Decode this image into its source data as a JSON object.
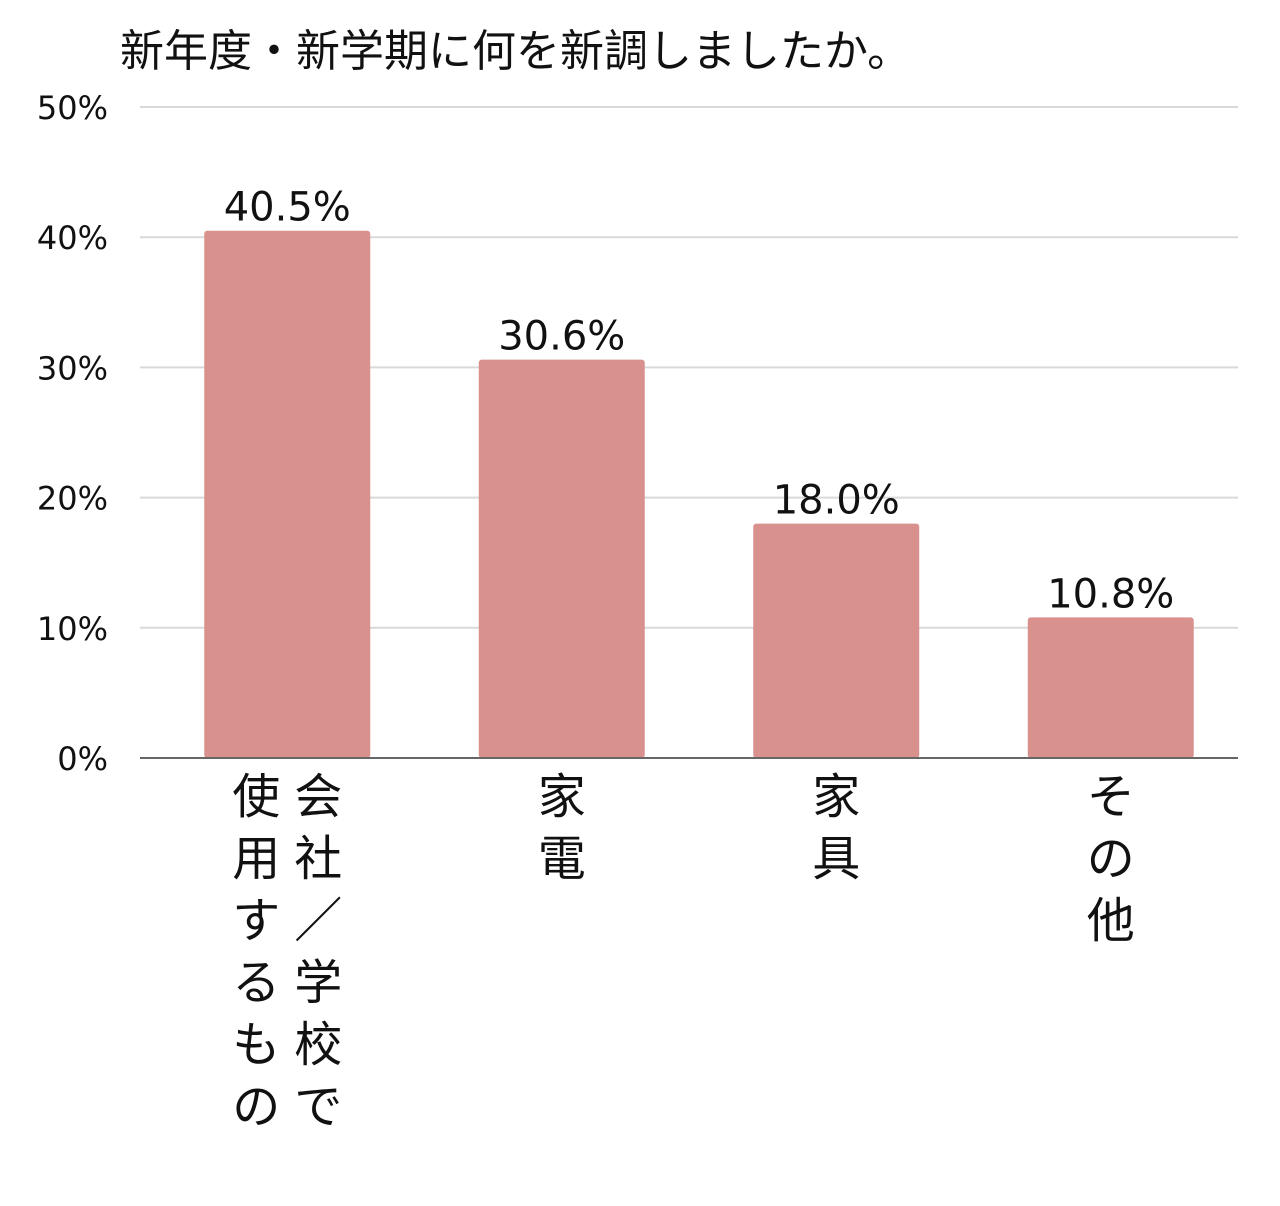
{
  "chart_data": {
    "type": "bar",
    "title": "新年度・新学期に何を新調しましたか。",
    "categories": [
      "会社／学校で使用するもの",
      "家電",
      "家具",
      "その他"
    ],
    "values": [
      40.5,
      30.6,
      18.0,
      10.8
    ],
    "data_labels": [
      "40.5%",
      "30.6%",
      "18.0%",
      "10.8%"
    ],
    "yticks": [
      0,
      10,
      20,
      30,
      40,
      50
    ],
    "ytick_labels": [
      "0%",
      "10%",
      "20%",
      "30%",
      "40%",
      "50%"
    ],
    "ylim": [
      0,
      50
    ],
    "xlabel": "",
    "ylabel": "",
    "grid": true,
    "bar_color": "#d9918d",
    "grid_color": "#d9d9d9",
    "axis_color": "#666666"
  }
}
